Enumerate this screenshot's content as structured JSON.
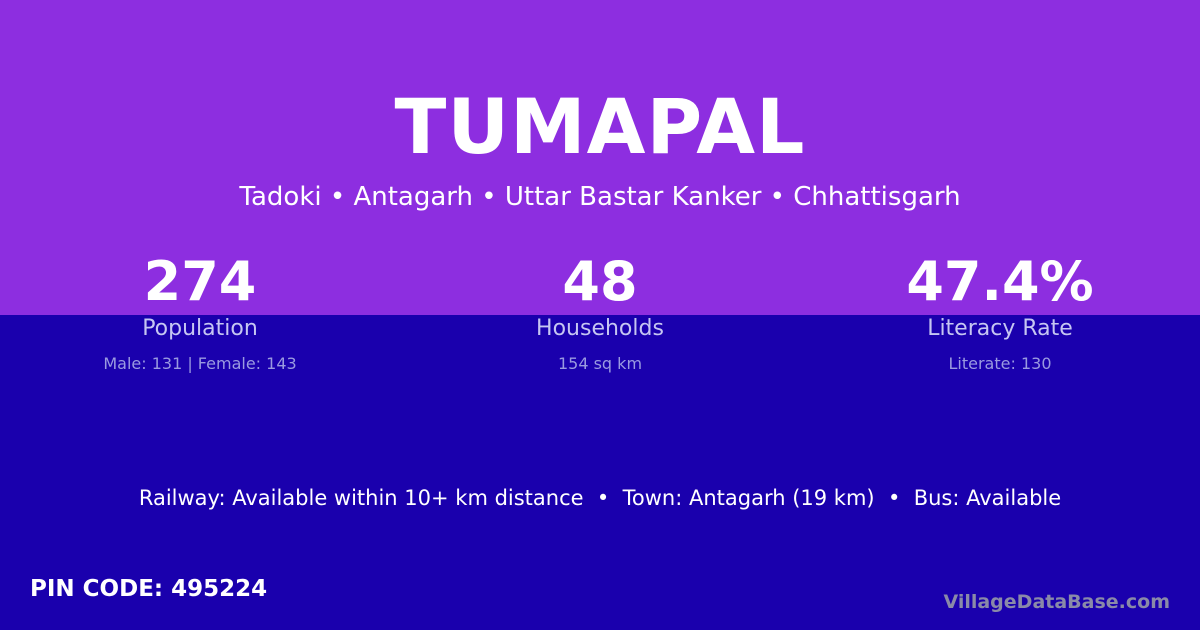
{
  "village": "TUMAPAL",
  "location": "Tadoki • Antagarh • Uttar Bastar Kanker • Chhattisgarh",
  "stats": [
    {
      "value": "274",
      "label": "Population",
      "detail": "Male: 131 | Female: 143"
    },
    {
      "value": "48",
      "label": "Households",
      "detail": "154 sq km"
    },
    {
      "value": "47.4%",
      "label": "Literacy Rate",
      "detail": "Literate: 130"
    }
  ],
  "connectivity": "Railway: Available within 10+ km distance  •  Town: Antagarh (19 km)  •  Bus: Available",
  "pin_code": "PIN CODE: 495224",
  "brand": "VillageDataBase.com",
  "colors": {
    "top": "#8d2ee0",
    "bottom": "#1a00ad"
  }
}
